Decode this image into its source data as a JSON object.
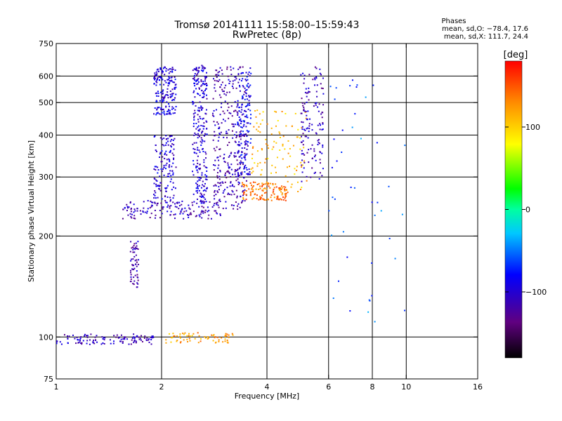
{
  "chart_data": {
    "type": "scatter",
    "title": "Tromsø 20141111 15:58:00–15:59:43",
    "subtitle": "RwPretec (8p)",
    "xlabel": "Frequency [MHz]",
    "ylabel": "Stationary phase Virtual Height [km]",
    "x_scale": "log",
    "y_scale": "log",
    "xlim": [
      1,
      16
    ],
    "ylim": [
      75,
      750
    ],
    "x_ticks": [
      1,
      2,
      4,
      6,
      8,
      10,
      16
    ],
    "x_tick_labels": [
      "1",
      "2",
      "4",
      "6",
      "8",
      "10",
      "16"
    ],
    "x_grid": [
      2,
      4,
      6,
      8,
      10
    ],
    "y_ticks": [
      75,
      100,
      200,
      300,
      400,
      500,
      600,
      750
    ],
    "y_tick_labels": [
      "75",
      "100",
      "200",
      "300",
      "400",
      "500",
      "600",
      "750"
    ],
    "y_grid": [
      100,
      200,
      300,
      400,
      500,
      600
    ],
    "grid": true,
    "stats": {
      "heading": "Phases",
      "line_o": "mean, sd,O: −78.4, 17.6",
      "line_x": "mean, sd,X: 111.7, 24.4"
    },
    "colorbar": {
      "label": "[deg]",
      "min": -180,
      "max": 180,
      "ticks": [
        100,
        0,
        -100
      ],
      "tick_labels": [
        "100",
        "0",
        "−100"
      ],
      "colormap": "rainbow"
    },
    "series_clusters": [
      {
        "x": [
          1.0,
          1.9
        ],
        "y": [
          95,
          102
        ],
        "phase": -110,
        "count": 120
      },
      {
        "x": [
          1.63,
          1.72
        ],
        "y": [
          140,
          195
        ],
        "phase": -115,
        "count": 60
      },
      {
        "x": [
          2.05,
          3.2
        ],
        "y": [
          96,
          103
        ],
        "phase": 120,
        "count": 70
      },
      {
        "x": [
          1.55,
          3.0
        ],
        "y": [
          225,
          255
        ],
        "phase": -110,
        "count": 150
      },
      {
        "x": [
          1.9,
          2.2
        ],
        "y": [
          460,
          640
        ],
        "phase": -95,
        "count": 180
      },
      {
        "x": [
          1.9,
          2.2
        ],
        "y": [
          250,
          400
        ],
        "phase": -100,
        "count": 140
      },
      {
        "x": [
          2.45,
          2.7
        ],
        "y": [
          250,
          650
        ],
        "phase": -100,
        "count": 260
      },
      {
        "x": [
          2.8,
          3.5
        ],
        "y": [
          240,
          640
        ],
        "phase": -115,
        "count": 320
      },
      {
        "x": [
          3.3,
          3.6
        ],
        "y": [
          300,
          640
        ],
        "phase": -90,
        "count": 150
      },
      {
        "x": [
          3.4,
          4.6
        ],
        "y": [
          255,
          290
        ],
        "phase": 140,
        "count": 120
      },
      {
        "x": [
          3.6,
          5.2
        ],
        "y": [
          270,
          480
        ],
        "phase": 110,
        "count": 110
      },
      {
        "x": [
          5.0,
          5.8
        ],
        "y": [
          290,
          640
        ],
        "phase": -110,
        "count": 140
      },
      {
        "x": [
          6.0,
          10.0
        ],
        "y": [
          110,
          600
        ],
        "phase": -60,
        "count": 45
      }
    ]
  }
}
